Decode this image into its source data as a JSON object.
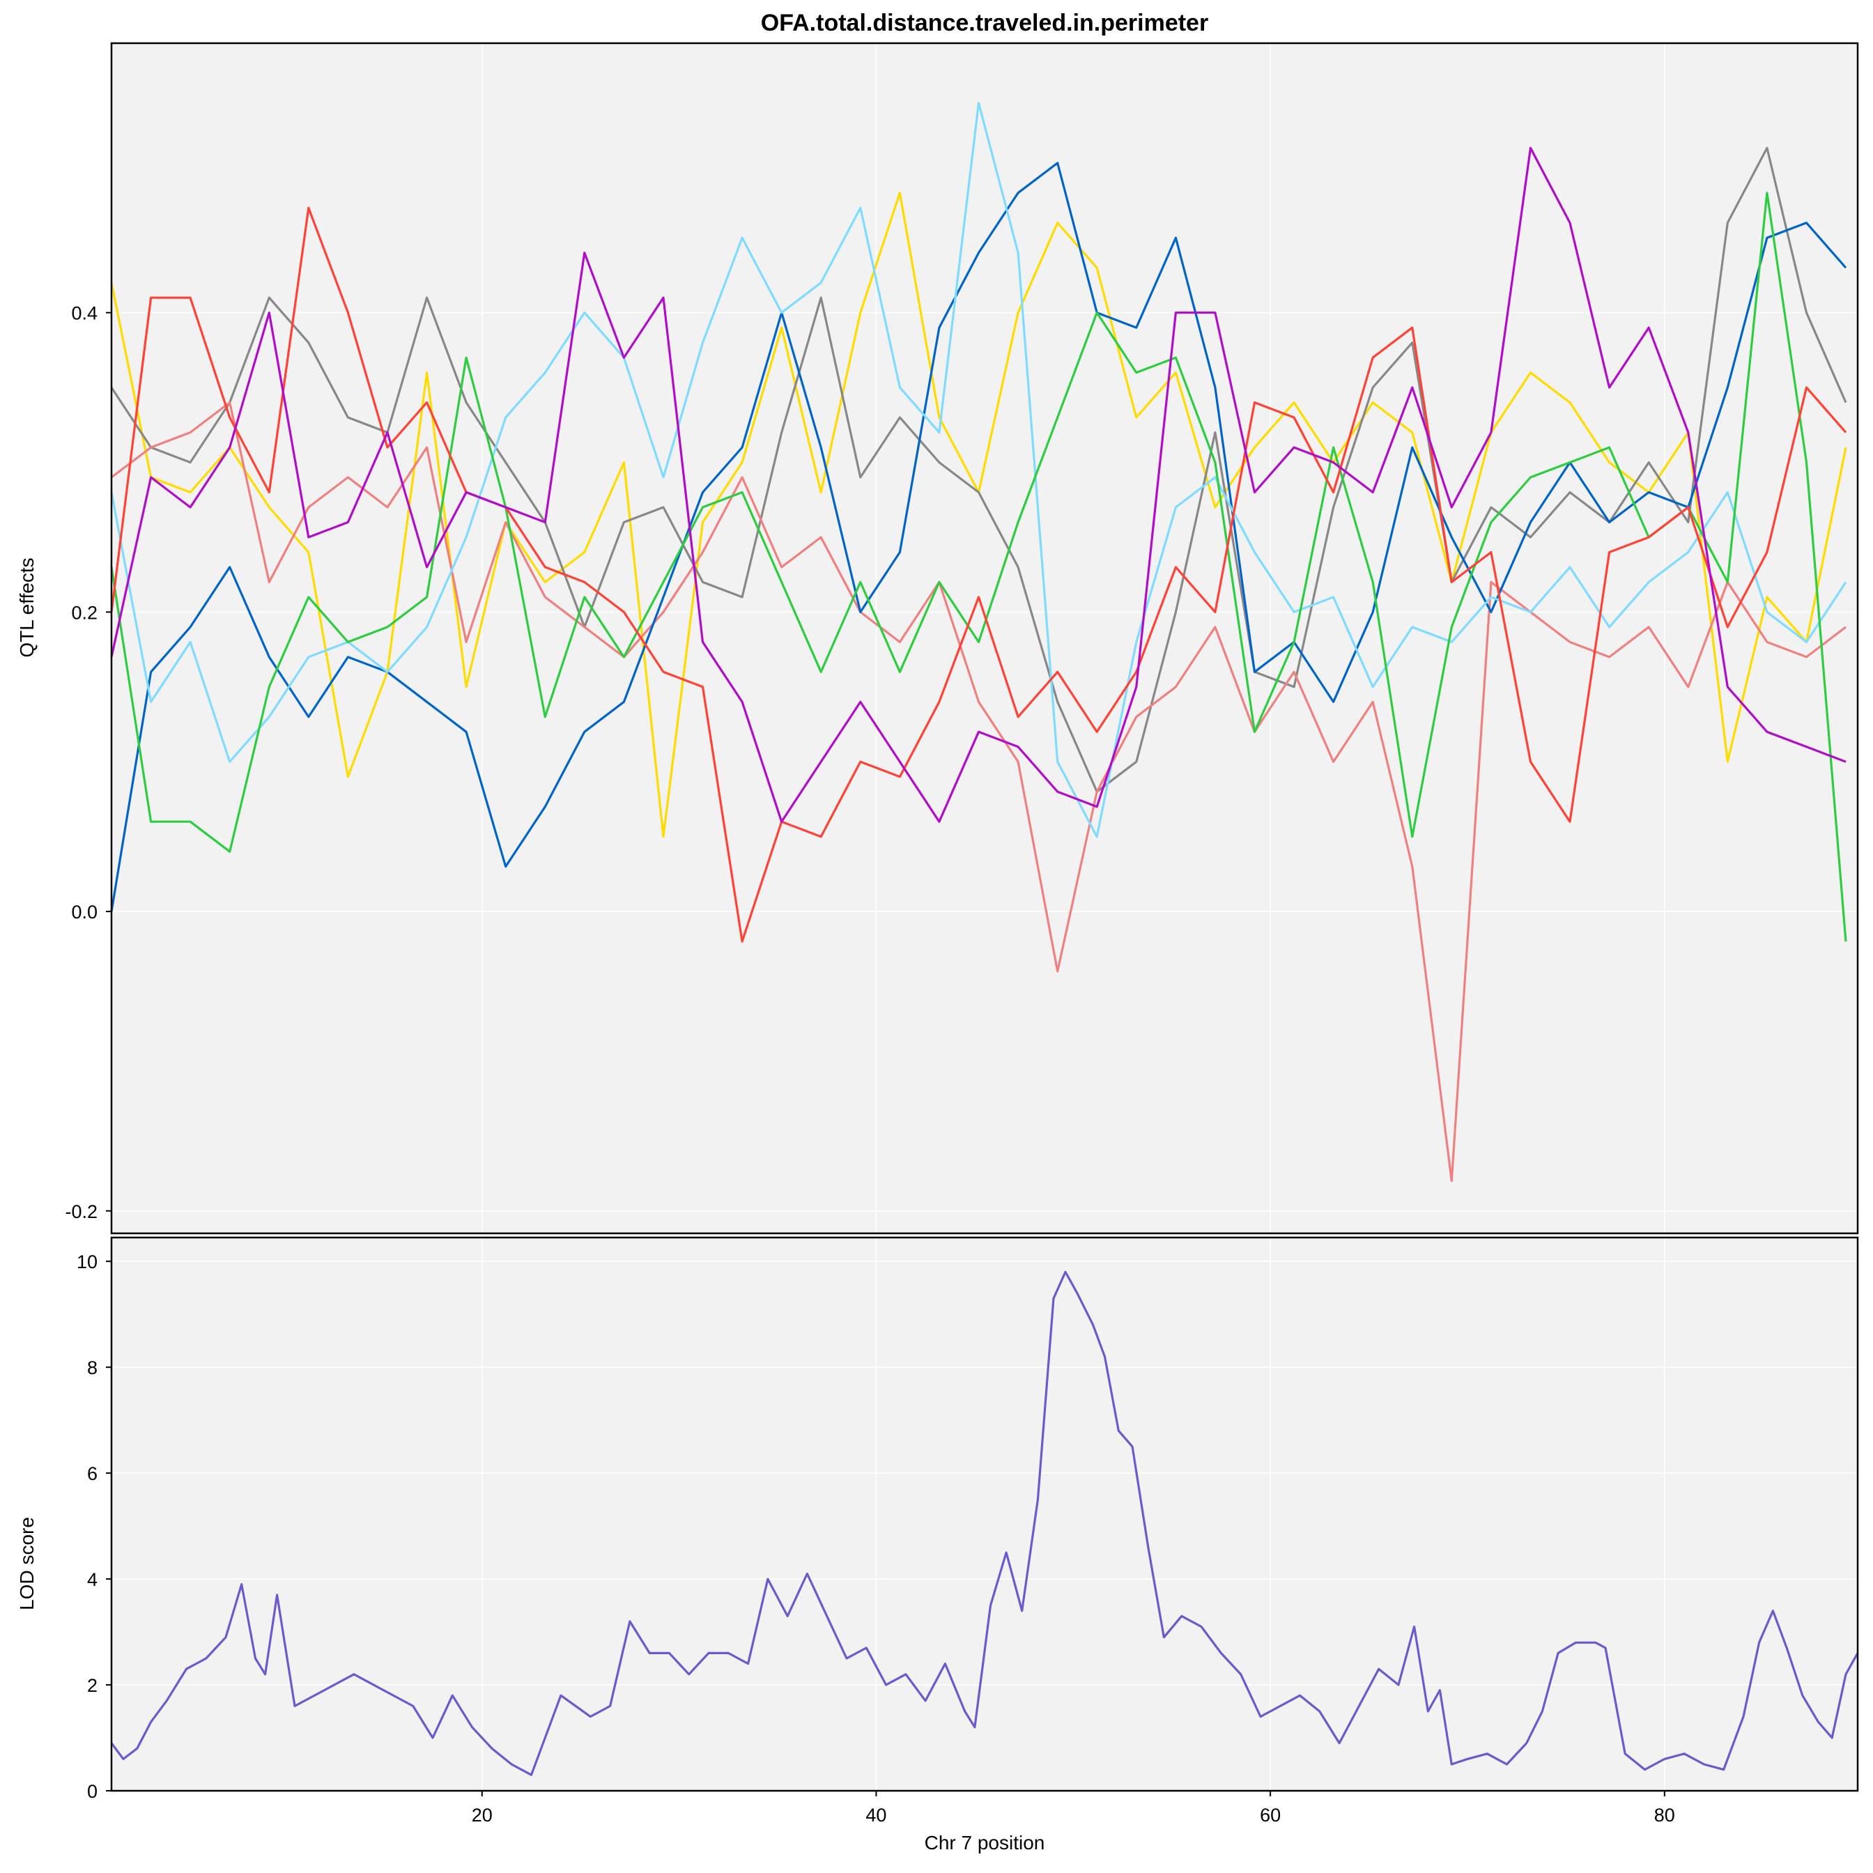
{
  "chart_data": [
    {
      "type": "line",
      "panel": "effects",
      "title": "OFA.total.distance.traveled.in.perimeter",
      "xlabel": "",
      "ylabel": "QTL effects",
      "xlim": [
        1.2,
        89.8
      ],
      "ylim": [
        -0.215,
        0.58
      ],
      "yticks": [
        -0.2,
        0.0,
        0.2,
        0.4
      ],
      "ytick_labels": [
        "-0.2",
        "0.0",
        "0.2",
        "0.4"
      ],
      "xgrid": [
        20,
        40,
        60,
        80
      ],
      "grid": true,
      "x": [
        1.2,
        3.2,
        5.2,
        7.2,
        9.2,
        11.2,
        13.2,
        15.2,
        17.2,
        19.2,
        21.2,
        23.2,
        25.2,
        27.2,
        29.2,
        31.2,
        33.2,
        35.2,
        37.2,
        39.2,
        41.2,
        43.2,
        45.2,
        47.2,
        49.2,
        51.2,
        53.2,
        55.2,
        57.2,
        59.2,
        61.2,
        63.2,
        65.2,
        67.2,
        69.2,
        71.2,
        73.2,
        75.2,
        77.2,
        79.2,
        81.2,
        83.2,
        85.2,
        87.2,
        89.2
      ],
      "series": [
        {
          "color": "#FFDC00",
          "values": [
            0.42,
            0.29,
            0.28,
            0.31,
            0.27,
            0.24,
            0.09,
            0.16,
            0.36,
            0.15,
            0.26,
            0.22,
            0.24,
            0.3,
            0.05,
            0.26,
            0.3,
            0.39,
            0.28,
            0.4,
            0.48,
            0.33,
            0.28,
            0.4,
            0.46,
            0.43,
            0.33,
            0.36,
            0.27,
            0.31,
            0.34,
            0.3,
            0.34,
            0.32,
            0.22,
            0.32,
            0.36,
            0.34,
            0.3,
            0.28,
            0.32,
            0.1,
            0.21,
            0.18,
            0.31
          ]
        },
        {
          "color": "#888888",
          "values": [
            0.35,
            0.31,
            0.3,
            0.34,
            0.41,
            0.38,
            0.33,
            0.32,
            0.41,
            0.34,
            0.3,
            0.26,
            0.19,
            0.26,
            0.27,
            0.22,
            0.21,
            0.32,
            0.41,
            0.29,
            0.33,
            0.3,
            0.28,
            0.23,
            0.14,
            0.08,
            0.1,
            0.2,
            0.32,
            0.16,
            0.15,
            0.27,
            0.35,
            0.38,
            0.22,
            0.27,
            0.25,
            0.28,
            0.26,
            0.3,
            0.26,
            0.46,
            0.51,
            0.4,
            0.34
          ]
        },
        {
          "color": "#F08080",
          "values": [
            0.29,
            0.31,
            0.32,
            0.34,
            0.22,
            0.27,
            0.29,
            0.27,
            0.31,
            0.18,
            0.26,
            0.21,
            0.19,
            0.17,
            0.2,
            0.24,
            0.29,
            0.23,
            0.25,
            0.2,
            0.18,
            0.22,
            0.14,
            0.1,
            -0.04,
            0.08,
            0.13,
            0.15,
            0.19,
            0.12,
            0.16,
            0.1,
            0.14,
            0.03,
            -0.18,
            0.22,
            0.2,
            0.18,
            0.17,
            0.19,
            0.15,
            0.22,
            0.18,
            0.17,
            0.19
          ]
        },
        {
          "color": "#0064C9",
          "values": [
            0.0,
            0.16,
            0.19,
            0.23,
            0.17,
            0.13,
            0.17,
            0.16,
            0.14,
            0.12,
            0.03,
            0.07,
            0.12,
            0.14,
            0.21,
            0.28,
            0.31,
            0.4,
            0.31,
            0.2,
            0.24,
            0.39,
            0.44,
            0.48,
            0.5,
            0.4,
            0.39,
            0.45,
            0.35,
            0.16,
            0.18,
            0.14,
            0.2,
            0.31,
            0.25,
            0.2,
            0.26,
            0.3,
            0.26,
            0.28,
            0.27,
            0.35,
            0.45,
            0.46,
            0.43
          ]
        },
        {
          "color": "#7FDBFF",
          "values": [
            0.28,
            0.14,
            0.18,
            0.1,
            0.13,
            0.17,
            0.18,
            0.16,
            0.19,
            0.25,
            0.33,
            0.36,
            0.4,
            0.37,
            0.29,
            0.38,
            0.45,
            0.4,
            0.42,
            0.47,
            0.35,
            0.32,
            0.54,
            0.44,
            0.1,
            0.05,
            0.18,
            0.27,
            0.29,
            0.24,
            0.2,
            0.21,
            0.15,
            0.19,
            0.18,
            0.21,
            0.2,
            0.23,
            0.19,
            0.22,
            0.24,
            0.28,
            0.2,
            0.18,
            0.22
          ]
        },
        {
          "color": "#2ECC40",
          "values": [
            0.23,
            0.06,
            0.06,
            0.04,
            0.15,
            0.21,
            0.18,
            0.19,
            0.21,
            0.37,
            0.27,
            0.13,
            0.21,
            0.17,
            0.22,
            0.27,
            0.28,
            0.22,
            0.16,
            0.22,
            0.16,
            0.22,
            0.18,
            0.26,
            0.33,
            0.4,
            0.36,
            0.37,
            0.3,
            0.12,
            0.18,
            0.31,
            0.22,
            0.05,
            0.19,
            0.26,
            0.29,
            0.3,
            0.31,
            0.25,
            0.27,
            0.22,
            0.48,
            0.3,
            -0.02
          ]
        },
        {
          "color": "#FF4136",
          "values": [
            0.2,
            0.41,
            0.41,
            0.33,
            0.28,
            0.47,
            0.4,
            0.31,
            0.34,
            0.28,
            0.27,
            0.23,
            0.22,
            0.2,
            0.16,
            0.15,
            -0.02,
            0.06,
            0.05,
            0.1,
            0.09,
            0.14,
            0.21,
            0.13,
            0.16,
            0.12,
            0.16,
            0.23,
            0.2,
            0.34,
            0.33,
            0.28,
            0.37,
            0.39,
            0.22,
            0.24,
            0.1,
            0.06,
            0.24,
            0.25,
            0.27,
            0.19,
            0.24,
            0.35,
            0.32
          ]
        },
        {
          "color": "#B10DC9",
          "values": [
            0.17,
            0.29,
            0.27,
            0.31,
            0.4,
            0.25,
            0.26,
            0.32,
            0.23,
            0.28,
            0.27,
            0.26,
            0.44,
            0.37,
            0.41,
            0.18,
            0.14,
            0.06,
            0.1,
            0.14,
            0.1,
            0.06,
            0.12,
            0.11,
            0.08,
            0.07,
            0.15,
            0.4,
            0.4,
            0.28,
            0.31,
            0.3,
            0.28,
            0.35,
            0.27,
            0.32,
            0.51,
            0.46,
            0.35,
            0.39,
            0.32,
            0.15,
            0.12,
            0.11,
            0.1
          ]
        }
      ]
    },
    {
      "type": "line",
      "panel": "lod",
      "title": "",
      "xlabel": "Chr 7 position",
      "ylabel": "LOD score",
      "xlim": [
        1.2,
        89.8
      ],
      "ylim": [
        0,
        10.45
      ],
      "yticks": [
        0,
        2,
        4,
        6,
        8,
        10
      ],
      "ytick_labels": [
        "0",
        "2",
        "4",
        "6",
        "8",
        "10"
      ],
      "xticks": [
        20,
        40,
        60,
        80
      ],
      "xtick_labels": [
        "20",
        "40",
        "60",
        "80"
      ],
      "grid": true,
      "x": [
        1.2,
        1.8,
        2.5,
        3.2,
        4.0,
        5.0,
        6.0,
        7.0,
        7.8,
        8.5,
        9.0,
        9.6,
        10.5,
        12.0,
        13.5,
        15.0,
        16.5,
        17.5,
        18.5,
        19.5,
        20.5,
        21.5,
        22.5,
        24.0,
        25.5,
        26.5,
        27.5,
        28.5,
        29.5,
        30.5,
        31.5,
        32.5,
        33.5,
        34.5,
        35.5,
        36.5,
        37.5,
        38.5,
        39.5,
        40.5,
        41.5,
        42.5,
        43.5,
        44.5,
        45.0,
        45.8,
        46.6,
        47.4,
        48.2,
        49.0,
        49.6,
        50.2,
        51.0,
        51.6,
        52.3,
        53.0,
        53.8,
        54.6,
        55.5,
        56.5,
        57.5,
        58.5,
        59.5,
        60.5,
        61.5,
        62.5,
        63.5,
        64.5,
        65.5,
        66.5,
        67.3,
        68.0,
        68.6,
        69.2,
        70.0,
        71.0,
        72.0,
        73.0,
        73.8,
        74.6,
        75.5,
        76.5,
        77.0,
        78.0,
        79.0,
        80.0,
        81.0,
        82.0,
        83.0,
        84.0,
        84.8,
        85.5,
        86.2,
        87.0,
        87.8,
        88.5,
        89.2,
        89.8
      ],
      "values": [
        0.9,
        0.6,
        0.8,
        1.3,
        1.7,
        2.3,
        2.5,
        2.9,
        3.9,
        2.5,
        2.2,
        3.7,
        1.6,
        1.9,
        2.2,
        1.9,
        1.6,
        1.0,
        1.8,
        1.2,
        0.8,
        0.5,
        0.3,
        1.8,
        1.4,
        1.6,
        3.2,
        2.6,
        2.6,
        2.2,
        2.6,
        2.6,
        2.4,
        4.0,
        3.3,
        4.1,
        3.3,
        2.5,
        2.7,
        2.0,
        2.2,
        1.7,
        2.4,
        1.5,
        1.2,
        3.5,
        4.5,
        3.4,
        5.5,
        9.3,
        9.8,
        9.4,
        8.8,
        8.2,
        6.8,
        6.5,
        4.6,
        2.9,
        3.3,
        3.1,
        2.6,
        2.2,
        1.4,
        1.6,
        1.8,
        1.5,
        0.9,
        1.6,
        2.3,
        2.0,
        3.1,
        1.5,
        1.9,
        0.5,
        0.6,
        0.7,
        0.5,
        0.9,
        1.5,
        2.6,
        2.8,
        2.8,
        2.7,
        0.7,
        0.4,
        0.6,
        0.7,
        0.5,
        0.4,
        1.4,
        2.8,
        3.4,
        2.7,
        1.8,
        1.3,
        1.0,
        2.2,
        2.6
      ]
    }
  ]
}
